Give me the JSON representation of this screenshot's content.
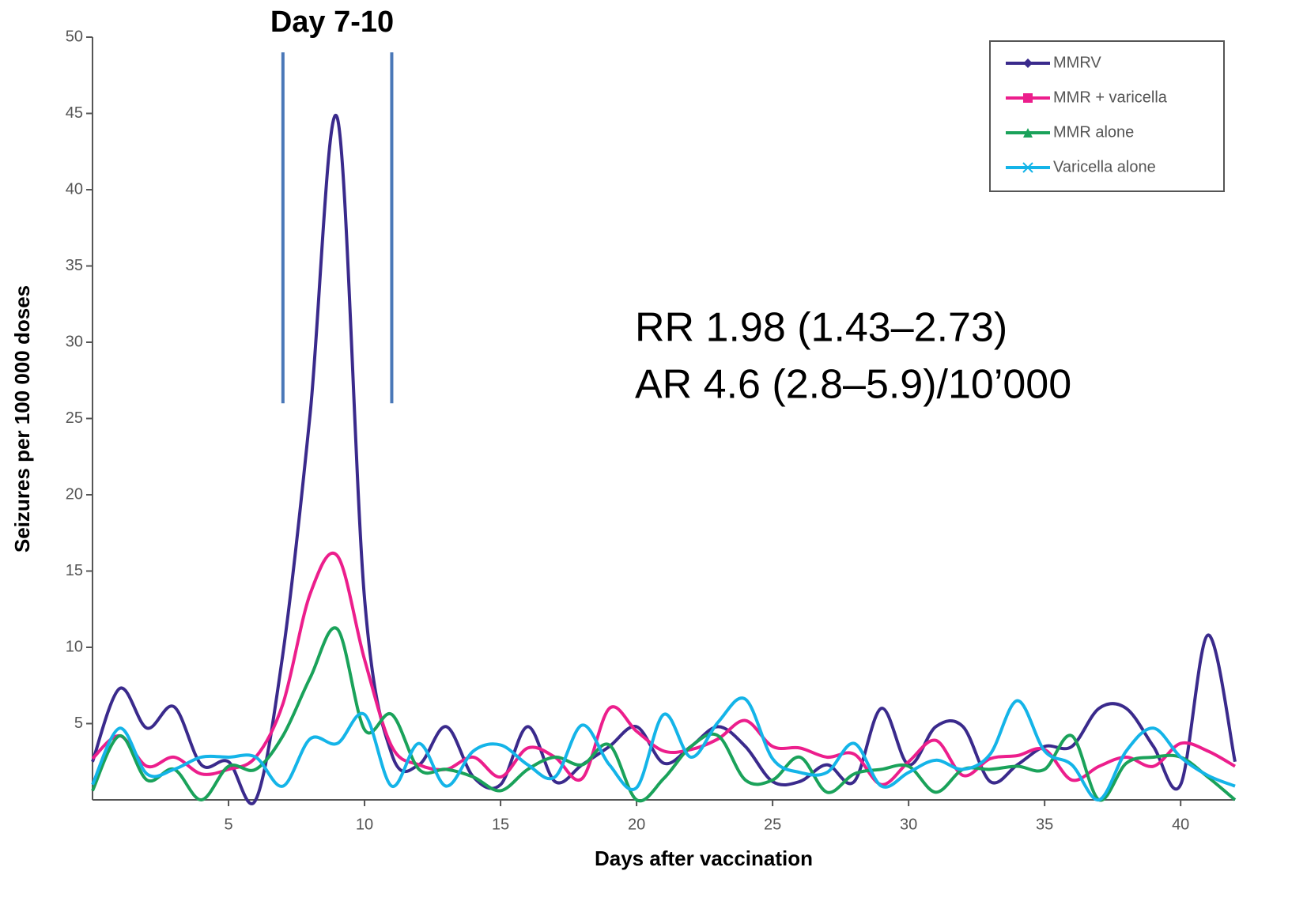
{
  "chart_data": {
    "type": "line",
    "title": "Day 7-10",
    "x_label": "Days after vaccination",
    "y_label": "Seizures per 100 000 doses",
    "annotations": [
      "RR 1.98 (1.43–2.73)",
      "AR 4.6 (2.8–5.9)/10’000"
    ],
    "highlight_x": [
      7,
      11
    ],
    "highlight_y": [
      26,
      49
    ],
    "highlight_color": "#4a78b8",
    "x": [
      0,
      1,
      2,
      3,
      4,
      5,
      6,
      7,
      8,
      9,
      10,
      11,
      12,
      13,
      14,
      15,
      16,
      17,
      18,
      19,
      20,
      21,
      22,
      23,
      24,
      25,
      26,
      27,
      28,
      29,
      30,
      31,
      32,
      33,
      34,
      35,
      36,
      37,
      38,
      39,
      40,
      41,
      42
    ],
    "xlim": [
      0,
      42
    ],
    "xticks": [
      5,
      10,
      15,
      20,
      25,
      30,
      35,
      40
    ],
    "ylim": [
      0,
      50
    ],
    "yticks": [
      5,
      10,
      15,
      20,
      25,
      30,
      35,
      40,
      45,
      50
    ],
    "legend": "upper right",
    "series": [
      {
        "name": "MMRV",
        "color": "#3a2a8c",
        "marker": "diamond",
        "values": [
          2.5,
          7.3,
          4.7,
          6.1,
          2.3,
          2.5,
          0,
          9.6,
          25.3,
          44.7,
          13.2,
          3,
          2.3,
          4.8,
          1.5,
          1.0,
          4.8,
          1.2,
          2.3,
          3.5,
          4.8,
          2.4,
          3.5,
          4.8,
          3.5,
          1.2,
          1.2,
          2.3,
          1.2,
          6.0,
          2.3,
          4.8,
          4.8,
          1.2,
          2.3,
          3.5,
          3.5,
          6.0,
          6.0,
          3.5,
          1.0,
          10.8,
          2.5
        ]
      },
      {
        "name": "MMR + varicella",
        "color": "#ec1e8c",
        "marker": "square",
        "values": [
          2.7,
          4.2,
          2.2,
          2.8,
          1.7,
          2.0,
          2.8,
          6.3,
          13.5,
          16,
          9.2,
          3.5,
          2.3,
          2.0,
          2.8,
          1.5,
          3.4,
          2.8,
          1.4,
          6.0,
          4.5,
          3.2,
          3.3,
          4.0,
          5.2,
          3.5,
          3.4,
          2.8,
          3.0,
          1.0,
          2.5,
          3.9,
          1.6,
          2.7,
          2.9,
          3.3,
          1.3,
          2.2,
          2.8,
          2.2,
          3.7,
          3.2,
          2.2
        ]
      },
      {
        "name": "MMR alone",
        "color": "#1aa25a",
        "marker": "triangle",
        "values": [
          0.6,
          4.2,
          1.3,
          2.0,
          0,
          2.2,
          2.0,
          4.2,
          8.0,
          11.2,
          4.6,
          5.6,
          2.0,
          2.0,
          1.5,
          0.6,
          2.0,
          2.8,
          2.3,
          3.6,
          0,
          1.4,
          3.5,
          4.2,
          1.3,
          1.3,
          2.8,
          0.5,
          1.7,
          2.0,
          2.2,
          0.5,
          2.0,
          2.0,
          2.2,
          2.0,
          4.2,
          0,
          2.4,
          2.8,
          2.8,
          1.5,
          0
        ]
      },
      {
        "name": "Varicella alone",
        "color": "#14b4e8",
        "marker": "cross",
        "values": [
          1.0,
          4.7,
          1.7,
          2.0,
          2.8,
          2.8,
          2.8,
          0.9,
          4.0,
          3.7,
          5.6,
          0.9,
          3.7,
          0.9,
          3.2,
          3.6,
          2.3,
          1.5,
          4.9,
          2.3,
          0.8,
          5.6,
          2.8,
          5.1,
          6.6,
          2.7,
          1.8,
          1.8,
          3.7,
          0.9,
          1.8,
          2.6,
          2.0,
          3.0,
          6.5,
          3.2,
          2.3,
          0,
          3.2,
          4.7,
          2.8,
          1.6,
          0.9
        ]
      }
    ]
  }
}
